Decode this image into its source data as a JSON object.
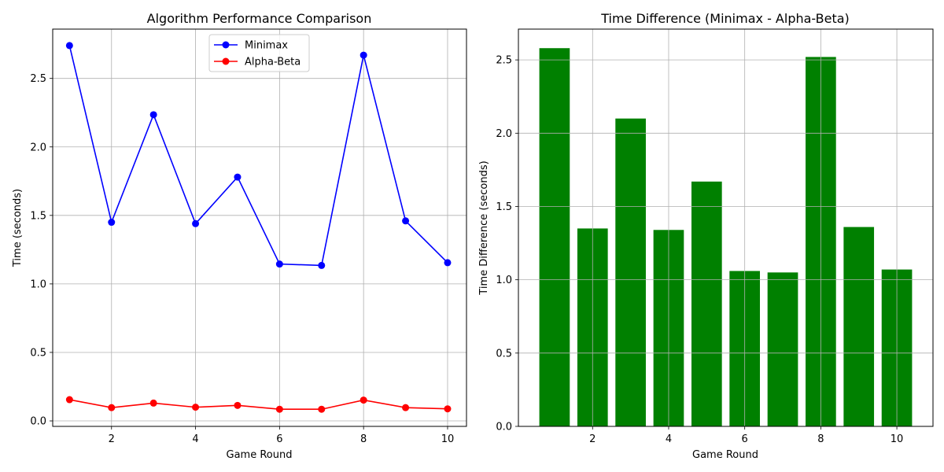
{
  "chart_data": [
    {
      "type": "line",
      "title": "Algorithm Performance Comparison",
      "xlabel": "Game Round",
      "ylabel": "Time (seconds)",
      "x": [
        1,
        2,
        3,
        4,
        5,
        6,
        7,
        8,
        9,
        10
      ],
      "xlim": [
        0.6,
        10.45
      ],
      "ylim": [
        -0.04,
        2.86
      ],
      "xticks": [
        2,
        4,
        6,
        8,
        10
      ],
      "yticks": [
        0.0,
        0.5,
        1.0,
        1.5,
        2.0,
        2.5
      ],
      "ytick_labels": [
        "0.0",
        "0.5",
        "1.0",
        "1.5",
        "2.0",
        "2.5"
      ],
      "grid": true,
      "legend": "upper center",
      "series": [
        {
          "name": "Minimax",
          "color": "#0000ff",
          "marker": "circle",
          "values": [
            2.74,
            1.45,
            2.235,
            1.44,
            1.78,
            1.145,
            1.135,
            2.67,
            1.46,
            1.155
          ]
        },
        {
          "name": "Alpha-Beta",
          "color": "#ff0000",
          "marker": "circle",
          "values": [
            0.155,
            0.097,
            0.13,
            0.1,
            0.113,
            0.085,
            0.085,
            0.152,
            0.097,
            0.088
          ]
        }
      ]
    },
    {
      "type": "bar",
      "title": "Time Difference (Minimax - Alpha-Beta)",
      "xlabel": "Game Round",
      "ylabel": "Time Difference (seconds)",
      "x": [
        1,
        2,
        3,
        4,
        5,
        6,
        7,
        8,
        9,
        10
      ],
      "values": [
        2.58,
        1.35,
        2.1,
        1.34,
        1.67,
        1.06,
        1.05,
        2.52,
        1.36,
        1.07
      ],
      "bar_color": "#008000",
      "xlim": [
        0.05,
        10.95
      ],
      "ylim": [
        0.0,
        2.71
      ],
      "xticks": [
        2,
        4,
        6,
        8,
        10
      ],
      "yticks": [
        0.0,
        0.5,
        1.0,
        1.5,
        2.0,
        2.5
      ],
      "ytick_labels": [
        "0.0",
        "0.5",
        "1.0",
        "1.5",
        "2.0",
        "2.5"
      ],
      "grid": true
    }
  ]
}
